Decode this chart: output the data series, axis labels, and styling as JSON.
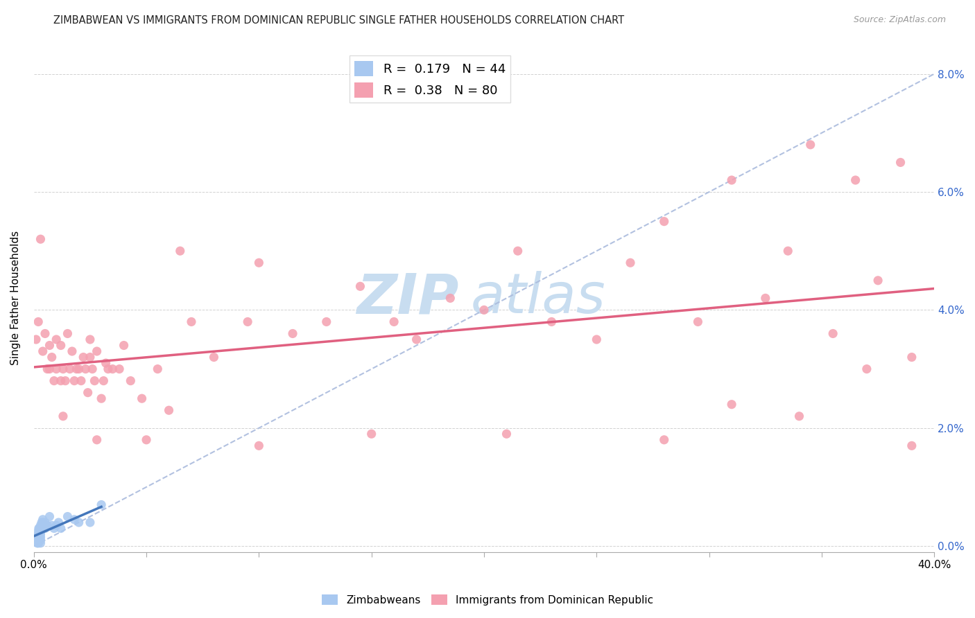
{
  "title": "ZIMBABWEAN VS IMMIGRANTS FROM DOMINICAN REPUBLIC SINGLE FATHER HOUSEHOLDS CORRELATION CHART",
  "source": "Source: ZipAtlas.com",
  "ylabel_label": "Single Father Households",
  "legend_label1": "Zimbabweans",
  "legend_label2": "Immigrants from Dominican Republic",
  "R1": 0.179,
  "N1": 44,
  "R2": 0.38,
  "N2": 80,
  "color1": "#a8c8f0",
  "color2": "#f4a0b0",
  "trendline1_color": "#4477bb",
  "trendline2_color": "#e06080",
  "diagonal_color": "#aabbdd",
  "watermark_zip": "ZIP",
  "watermark_atlas": "atlas",
  "watermark_color": "#c8ddf0",
  "background_color": "#ffffff",
  "xlim": [
    0.0,
    0.4
  ],
  "ylim": [
    -0.001,
    0.085
  ],
  "zimbabwe_x": [
    0.0005,
    0.0008,
    0.001,
    0.001,
    0.0012,
    0.0015,
    0.0015,
    0.0018,
    0.002,
    0.002,
    0.002,
    0.002,
    0.002,
    0.002,
    0.0022,
    0.0025,
    0.0025,
    0.003,
    0.003,
    0.003,
    0.003,
    0.003,
    0.003,
    0.003,
    0.0035,
    0.004,
    0.004,
    0.004,
    0.004,
    0.005,
    0.005,
    0.005,
    0.006,
    0.007,
    0.008,
    0.009,
    0.01,
    0.011,
    0.012,
    0.015,
    0.018,
    0.02,
    0.025,
    0.03
  ],
  "zimbabwe_y": [
    0.0008,
    0.001,
    0.0015,
    0.0012,
    0.0008,
    0.001,
    0.0005,
    0.0008,
    0.0005,
    0.0008,
    0.001,
    0.0015,
    0.002,
    0.0025,
    0.003,
    0.0008,
    0.003,
    0.003,
    0.0035,
    0.0025,
    0.002,
    0.0015,
    0.001,
    0.0005,
    0.004,
    0.003,
    0.0035,
    0.004,
    0.0045,
    0.0035,
    0.003,
    0.004,
    0.0035,
    0.005,
    0.0035,
    0.003,
    0.0035,
    0.004,
    0.003,
    0.005,
    0.0045,
    0.004,
    0.004,
    0.007
  ],
  "dominican_x": [
    0.001,
    0.002,
    0.003,
    0.004,
    0.005,
    0.006,
    0.007,
    0.007,
    0.008,
    0.009,
    0.01,
    0.01,
    0.012,
    0.012,
    0.013,
    0.014,
    0.015,
    0.016,
    0.017,
    0.018,
    0.019,
    0.02,
    0.021,
    0.022,
    0.023,
    0.024,
    0.025,
    0.025,
    0.026,
    0.027,
    0.028,
    0.03,
    0.031,
    0.032,
    0.033,
    0.035,
    0.038,
    0.04,
    0.043,
    0.048,
    0.055,
    0.06,
    0.065,
    0.07,
    0.08,
    0.095,
    0.1,
    0.115,
    0.13,
    0.145,
    0.16,
    0.17,
    0.185,
    0.2,
    0.215,
    0.23,
    0.25,
    0.265,
    0.28,
    0.295,
    0.31,
    0.325,
    0.335,
    0.345,
    0.355,
    0.365,
    0.375,
    0.385,
    0.39,
    0.013,
    0.028,
    0.05,
    0.1,
    0.15,
    0.21,
    0.28,
    0.31,
    0.34,
    0.37,
    0.39
  ],
  "dominican_y": [
    0.035,
    0.038,
    0.052,
    0.033,
    0.036,
    0.03,
    0.034,
    0.03,
    0.032,
    0.028,
    0.03,
    0.035,
    0.028,
    0.034,
    0.03,
    0.028,
    0.036,
    0.03,
    0.033,
    0.028,
    0.03,
    0.03,
    0.028,
    0.032,
    0.03,
    0.026,
    0.032,
    0.035,
    0.03,
    0.028,
    0.033,
    0.025,
    0.028,
    0.031,
    0.03,
    0.03,
    0.03,
    0.034,
    0.028,
    0.025,
    0.03,
    0.023,
    0.05,
    0.038,
    0.032,
    0.038,
    0.048,
    0.036,
    0.038,
    0.044,
    0.038,
    0.035,
    0.042,
    0.04,
    0.05,
    0.038,
    0.035,
    0.048,
    0.055,
    0.038,
    0.062,
    0.042,
    0.05,
    0.068,
    0.036,
    0.062,
    0.045,
    0.065,
    0.032,
    0.022,
    0.018,
    0.018,
    0.017,
    0.019,
    0.019,
    0.018,
    0.024,
    0.022,
    0.03,
    0.017
  ]
}
